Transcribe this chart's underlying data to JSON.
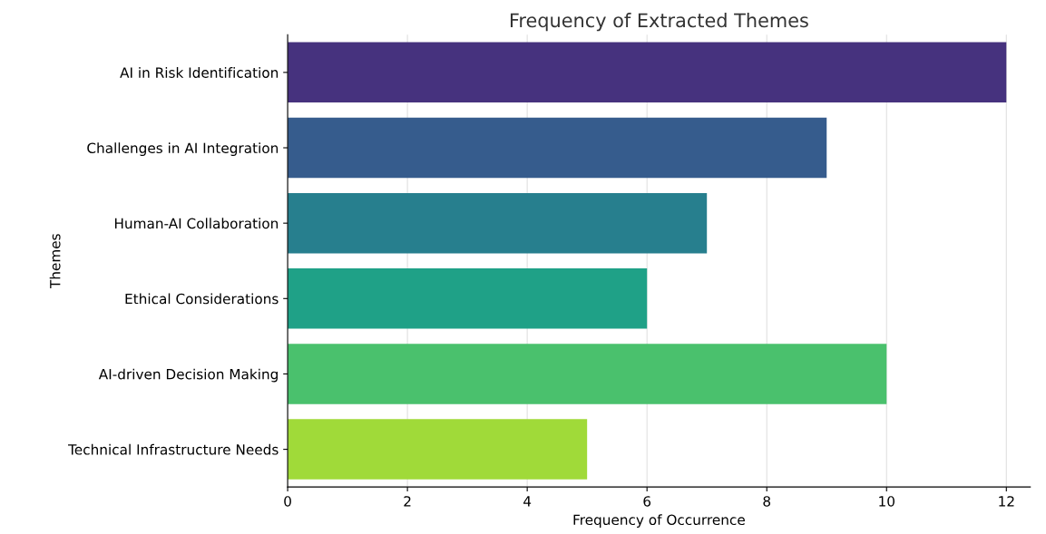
{
  "chart_data": {
    "type": "bar",
    "orientation": "horizontal",
    "title": "Frequency of Extracted Themes",
    "xlabel": "Frequency of Occurrence",
    "ylabel": "Themes",
    "categories": [
      "AI in Risk Identification",
      "Challenges in AI Integration",
      "Human-AI Collaboration",
      "Ethical Considerations",
      "AI-driven Decision Making",
      "Technical Infrastructure Needs"
    ],
    "values": [
      12,
      9,
      7,
      6,
      10,
      5
    ],
    "colors": [
      "#46327e",
      "#365c8d",
      "#277f8e",
      "#1fa187",
      "#4ac16d",
      "#a0da39"
    ],
    "xlim": [
      0,
      12.4
    ],
    "xticks": [
      0,
      2,
      4,
      6,
      8,
      10,
      12
    ],
    "grid": "x"
  }
}
